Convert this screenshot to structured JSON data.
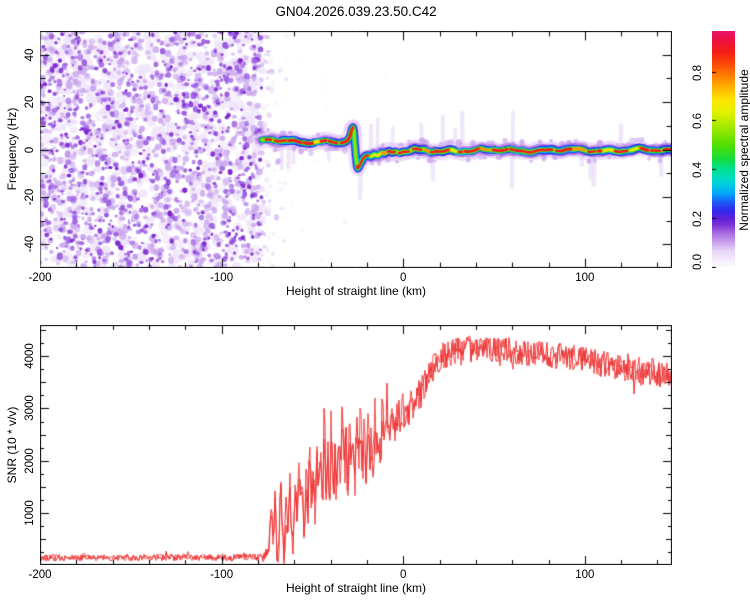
{
  "title": "GN04.2026.039.23.50.C42",
  "colors": {
    "background": "#ffffff",
    "frame": "#000000",
    "snr_line": "#ee3434",
    "noise_light": "#efe4fa",
    "noise_mid": "#c9a4ee",
    "noise_deep": "#9a5ce2",
    "noise_dark": "#7b24d0"
  },
  "chart_data": [
    {
      "type": "heatmap",
      "panel": "spectrogram",
      "xlabel": "Height of straight line (km)",
      "ylabel": "Frequency (Hz)",
      "xlim": [
        -200,
        148
      ],
      "ylim": [
        -50,
        50
      ],
      "x_ticks": {
        "values": [
          -200,
          -100,
          0,
          100
        ],
        "labels": [
          "-200",
          "-100",
          "0",
          "100"
        ],
        "minor_step": 20
      },
      "y_ticks": {
        "values": [
          40,
          20,
          0,
          -20,
          -40
        ],
        "labels": [
          "40",
          "20",
          "0",
          "-20",
          "-40"
        ],
        "minor_step": 10
      },
      "grid": false,
      "colorbar": {
        "label": "Normalized spectral amplitude",
        "tick_values": [
          0.0,
          0.2,
          0.4,
          0.6,
          0.8
        ],
        "tick_labels": [
          "0.0",
          "0.2",
          "0.4",
          "0.6",
          "0.8"
        ],
        "range": [
          0,
          0.97
        ],
        "stops": [
          [
            0.0,
            "#ffffff"
          ],
          [
            0.03,
            "#f6eefc"
          ],
          [
            0.07,
            "#e9d7f8"
          ],
          [
            0.11,
            "#c9a0ee"
          ],
          [
            0.15,
            "#a468e2"
          ],
          [
            0.18,
            "#7f35d4"
          ],
          [
            0.21,
            "#5c20dc"
          ],
          [
            0.245,
            "#2f2bee"
          ],
          [
            0.28,
            "#1b5ef8"
          ],
          [
            0.31,
            "#059ef8"
          ],
          [
            0.345,
            "#00c8e8"
          ],
          [
            0.38,
            "#00ddc0"
          ],
          [
            0.42,
            "#00e08c"
          ],
          [
            0.46,
            "#16dc3c"
          ],
          [
            0.52,
            "#52e000"
          ],
          [
            0.6,
            "#a8ea00"
          ],
          [
            0.66,
            "#e6f200"
          ],
          [
            0.71,
            "#ffe400"
          ],
          [
            0.76,
            "#ffb400"
          ],
          [
            0.81,
            "#ff8000"
          ],
          [
            0.86,
            "#fc4a08"
          ],
          [
            0.91,
            "#f51e14"
          ],
          [
            0.96,
            "#ee1240"
          ],
          [
            1.0,
            "#e8136e"
          ]
        ]
      },
      "noise_region": {
        "x_range_km": [
          -200,
          -78
        ],
        "sparse_until_km": -64
      },
      "signal_track_points": [
        [
          -77.5,
          3.2
        ],
        [
          -75,
          3.8
        ],
        [
          -72,
          4.1
        ],
        [
          -69,
          3.7
        ],
        [
          -66,
          3.9
        ],
        [
          -63,
          3.5
        ],
        [
          -60,
          3.7
        ],
        [
          -57,
          3.3
        ],
        [
          -54,
          3.5
        ],
        [
          -51,
          3.2
        ],
        [
          -48,
          3.4
        ],
        [
          -45,
          3.1
        ],
        [
          -42,
          3.3
        ],
        [
          -39,
          2.9
        ],
        [
          -36,
          2.8
        ],
        [
          -33,
          3.0
        ],
        [
          -31,
          3.3
        ],
        [
          -29.5,
          4.6
        ],
        [
          -28.5,
          7.2
        ],
        [
          -27.8,
          9.2
        ],
        [
          -27.2,
          7.0
        ],
        [
          -26.6,
          1.5
        ],
        [
          -26,
          -4.0
        ],
        [
          -25.4,
          -7.8
        ],
        [
          -24.8,
          -8.6
        ],
        [
          -24,
          -7.0
        ],
        [
          -23,
          -5.2
        ],
        [
          -22,
          -3.6
        ],
        [
          -21,
          -2.6
        ],
        [
          -19.5,
          -1.8
        ],
        [
          -18,
          -2.4
        ],
        [
          -16,
          -1.4
        ],
        [
          -14,
          -2.2
        ],
        [
          -12,
          -1.2
        ],
        [
          -10,
          -1.8
        ],
        [
          -8,
          -0.8
        ],
        [
          -6,
          -1.4
        ],
        [
          -4,
          -0.6
        ],
        [
          -2,
          -1.2
        ],
        [
          0,
          -0.6
        ],
        [
          3,
          -1.0
        ],
        [
          6,
          -0.3
        ],
        [
          9,
          -0.9
        ],
        [
          12,
          -0.4
        ],
        [
          15,
          -1.0
        ],
        [
          18,
          -0.3
        ],
        [
          22,
          -0.8
        ],
        [
          26,
          -0.2
        ],
        [
          30,
          -0.7
        ],
        [
          34,
          -0.1
        ],
        [
          38,
          -0.6
        ],
        [
          42,
          -0.2
        ],
        [
          46,
          -0.7
        ],
        [
          50,
          -0.1
        ],
        [
          54,
          -0.5
        ],
        [
          58,
          -0.2
        ],
        [
          62,
          -0.7
        ],
        [
          66,
          -0.1
        ],
        [
          70,
          -0.5
        ],
        [
          74,
          -0.2
        ],
        [
          78,
          -0.6
        ],
        [
          82,
          -0.1
        ],
        [
          86,
          -0.5
        ],
        [
          90,
          -0.2
        ],
        [
          94,
          -0.6
        ],
        [
          98,
          -0.1
        ],
        [
          102,
          -0.5
        ],
        [
          106,
          -0.2
        ],
        [
          110,
          -0.6
        ],
        [
          114,
          -0.1
        ],
        [
          118,
          -0.5
        ],
        [
          122,
          -0.2
        ],
        [
          126,
          -0.6
        ],
        [
          130,
          -0.1
        ],
        [
          134,
          -0.5
        ],
        [
          138,
          -0.2
        ],
        [
          142,
          -0.5
        ],
        [
          145,
          -0.2
        ],
        [
          148,
          -0.4
        ]
      ]
    },
    {
      "type": "line",
      "panel": "snr",
      "xlabel": "Height of straight line (km)",
      "ylabel": "SNR (10 * v/v)",
      "xlim": [
        -200,
        148
      ],
      "ylim": [
        0,
        4600
      ],
      "x_ticks": {
        "values": [
          -200,
          -100,
          0,
          100
        ],
        "labels": [
          "-200",
          "-100",
          "0",
          "100"
        ],
        "minor_step": 20
      },
      "y_ticks": {
        "values": [
          1000,
          2000,
          3000,
          4000
        ],
        "labels": [
          "1000",
          "2000",
          "3000",
          "4000"
        ],
        "minor_step": 250
      },
      "grid": false,
      "line_color": "#ee3434",
      "envelope_points": [
        [
          -200,
          140
        ],
        [
          -170,
          140
        ],
        [
          -140,
          145
        ],
        [
          -110,
          140
        ],
        [
          -95,
          142
        ],
        [
          -85,
          148
        ],
        [
          -80,
          150
        ],
        [
          -77,
          160
        ],
        [
          -74,
          240
        ],
        [
          -72.5,
          1250
        ],
        [
          -71.5,
          380
        ],
        [
          -70.5,
          1500
        ],
        [
          -69.5,
          260
        ],
        [
          -68.5,
          170
        ],
        [
          -67.5,
          1650
        ],
        [
          -66.5,
          520
        ],
        [
          -65.5,
          180
        ],
        [
          -64.5,
          1050
        ],
        [
          -63.5,
          480
        ],
        [
          -62.5,
          1680
        ],
        [
          -61.5,
          720
        ],
        [
          -60.5,
          320
        ],
        [
          -59.5,
          1480
        ],
        [
          -58.5,
          840
        ],
        [
          -57.5,
          2050
        ],
        [
          -56.5,
          950
        ],
        [
          -55.5,
          1420
        ],
        [
          -54.5,
          640
        ],
        [
          -53.5,
          1780
        ],
        [
          -52.5,
          1020
        ],
        [
          -51.5,
          2280
        ],
        [
          -50.5,
          1150
        ],
        [
          -49.5,
          1900
        ],
        [
          -48.5,
          860
        ],
        [
          -47.5,
          2420
        ],
        [
          -46.5,
          1320
        ],
        [
          -45.5,
          2050
        ],
        [
          -44.5,
          1080
        ],
        [
          -43.5,
          2820
        ],
        [
          -42.5,
          1460
        ],
        [
          -41.5,
          2180
        ],
        [
          -40.5,
          1260
        ],
        [
          -39.5,
          2580
        ],
        [
          -38.5,
          1520
        ],
        [
          -37.5,
          2120
        ],
        [
          -36.5,
          1180
        ],
        [
          -35.5,
          2480
        ],
        [
          -34.5,
          1640
        ],
        [
          -33.5,
          2880
        ],
        [
          -32.5,
          1560
        ],
        [
          -31.5,
          2320
        ],
        [
          -30.5,
          1380
        ],
        [
          -29.5,
          2680
        ],
        [
          -28.5,
          1740
        ],
        [
          -27.5,
          2240
        ],
        [
          -26.5,
          1460
        ],
        [
          -25.5,
          2620
        ],
        [
          -24.5,
          1840
        ],
        [
          -23.5,
          2900
        ],
        [
          -22.5,
          1680
        ],
        [
          -21.5,
          2440
        ],
        [
          -20.5,
          1960
        ],
        [
          -19.5,
          2780
        ],
        [
          -18.5,
          2040
        ],
        [
          -17.5,
          2520
        ],
        [
          -16.5,
          1880
        ],
        [
          -15.5,
          2880
        ],
        [
          -14.5,
          2160
        ],
        [
          -13.5,
          2640
        ],
        [
          -12.5,
          2080
        ],
        [
          -11.5,
          2960
        ],
        [
          -10.5,
          2360
        ],
        [
          -9,
          2720
        ],
        [
          -7.5,
          2480
        ],
        [
          -6,
          2880
        ],
        [
          -4.5,
          2640
        ],
        [
          -3,
          2920
        ],
        [
          -1.5,
          2700
        ],
        [
          0,
          3000
        ],
        [
          2,
          2840
        ],
        [
          4,
          3080
        ],
        [
          6,
          3020
        ],
        [
          8,
          3260
        ],
        [
          10,
          3220
        ],
        [
          12,
          3440
        ],
        [
          14,
          3580
        ],
        [
          16,
          3760
        ],
        [
          18,
          3880
        ],
        [
          20,
          3980
        ],
        [
          24,
          4040
        ],
        [
          28,
          4080
        ],
        [
          32,
          4120
        ],
        [
          36,
          4160
        ],
        [
          40,
          4100
        ],
        [
          44,
          4180
        ],
        [
          48,
          4140
        ],
        [
          52,
          4100
        ],
        [
          56,
          4150
        ],
        [
          60,
          4120
        ],
        [
          64,
          4080
        ],
        [
          68,
          4040
        ],
        [
          72,
          4090
        ],
        [
          76,
          4050
        ],
        [
          80,
          4020
        ],
        [
          84,
          3990
        ],
        [
          88,
          4030
        ],
        [
          92,
          3980
        ],
        [
          96,
          3950
        ],
        [
          100,
          3930
        ],
        [
          105,
          3890
        ],
        [
          110,
          3850
        ],
        [
          115,
          3800
        ],
        [
          120,
          3760
        ],
        [
          125,
          3800
        ],
        [
          130,
          3720
        ],
        [
          135,
          3670
        ],
        [
          140,
          3710
        ],
        [
          144,
          3620
        ],
        [
          148,
          3660
        ]
      ],
      "noise_amplitude_points": [
        [
          -200,
          65
        ],
        [
          -100,
          65
        ],
        [
          -80,
          70
        ],
        [
          -75,
          140
        ],
        [
          -70,
          260
        ],
        [
          -65,
          300
        ],
        [
          -58,
          360
        ],
        [
          -50,
          420
        ],
        [
          -42,
          450
        ],
        [
          -34,
          460
        ],
        [
          -26,
          440
        ],
        [
          -18,
          430
        ],
        [
          -10,
          400
        ],
        [
          -4,
          360
        ],
        [
          0,
          340
        ],
        [
          6,
          320
        ],
        [
          12,
          300
        ],
        [
          18,
          280
        ],
        [
          24,
          260
        ],
        [
          40,
          250
        ],
        [
          60,
          245
        ],
        [
          80,
          240
        ],
        [
          100,
          250
        ],
        [
          120,
          265
        ],
        [
          148,
          285
        ]
      ]
    }
  ]
}
